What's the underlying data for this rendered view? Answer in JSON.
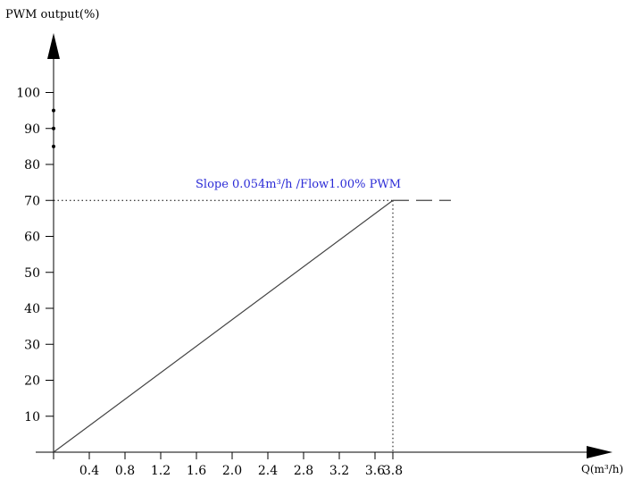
{
  "chart_data": {
    "type": "line",
    "ylabel": "PWM output(%)",
    "xlabel": "Q(m³/h)",
    "y_ticks": [
      "10",
      "20",
      "30",
      "40",
      "50",
      "60",
      "70",
      "80",
      "90",
      "100"
    ],
    "x_ticks": [
      "0.4",
      "0.8",
      "1.2",
      "1.6",
      "2.0",
      "2.4",
      "2.8",
      "3.2",
      "3.6",
      "3.8"
    ],
    "xlim": [
      0,
      3.8
    ],
    "ylim": [
      0,
      100
    ],
    "series": [
      {
        "x": [
          0,
          3.8
        ],
        "y": [
          0,
          70
        ]
      }
    ],
    "plateau_value": 70,
    "plateau_end_x": 4.45,
    "reference_level": 70,
    "reference_x": 3.8,
    "y_marker_dots": [
      85,
      90,
      95
    ],
    "annotation": "Slope 0.054m³/h /Flow1.00% PWM",
    "colors": {
      "axis": "#000000",
      "line": "#444444",
      "annotation": "#2b2bd6"
    }
  }
}
